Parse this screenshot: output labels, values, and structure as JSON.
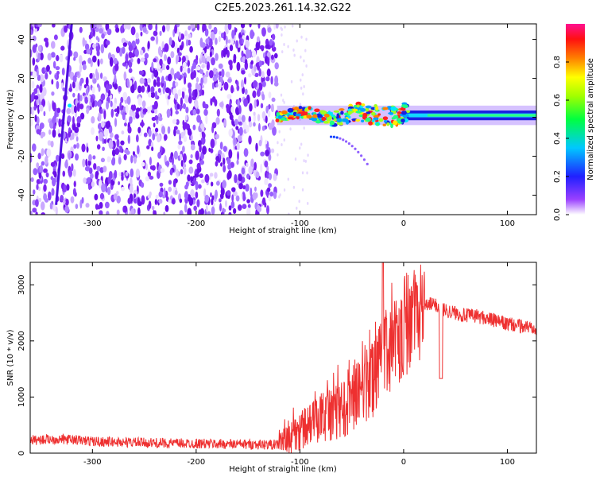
{
  "title": "C2E5.2023.261.14.32.G22",
  "chart_data": [
    {
      "type": "heatmap",
      "xlabel": "Height of straight line (km)",
      "ylabel": "Frequency (Hz)",
      "xlim": [
        -360,
        128
      ],
      "ylim": [
        -50,
        48
      ],
      "x_ticks": [
        -300,
        -200,
        -100,
        0,
        100
      ],
      "y_ticks": [
        -40,
        -20,
        0,
        20,
        40
      ],
      "colorbar": {
        "label": "Normalized spectral amplitude",
        "range": [
          0,
          1
        ],
        "ticks": [
          0.0,
          0.2,
          0.4,
          0.6,
          0.8
        ],
        "colormap": [
          "#ffffff",
          "#8000ff",
          "#0000ff",
          "#00ffff",
          "#00ff00",
          "#ffff00",
          "#ff8000",
          "#ff0000",
          "#ff00a0"
        ]
      },
      "features": {
        "noise_region_x": [
          -360,
          -122
        ],
        "signal_region_x": [
          -122,
          128
        ],
        "signal_frequency_hz": 1,
        "artifact_line": {
          "x": [
            -320,
            -335
          ],
          "y": [
            48,
            -45
          ]
        },
        "secondary_arc": {
          "x": [
            -70,
            -35
          ],
          "y": [
            -10,
            -24
          ]
        }
      }
    },
    {
      "type": "line",
      "xlabel": "Height of straight line (km)",
      "ylabel": "SNR (10 * v/v)",
      "xlim": [
        -360,
        128
      ],
      "ylim": [
        0,
        3400
      ],
      "x_ticks": [
        -300,
        -200,
        -100,
        0,
        100
      ],
      "y_ticks": [
        0,
        1000,
        2000,
        3000
      ],
      "color": "#ee3030",
      "series": [
        {
          "x": [
            -360,
            -340,
            -320,
            -300,
            -280,
            -260,
            -240,
            -220,
            -200,
            -180,
            -160,
            -140,
            -120,
            -110,
            -100,
            -90,
            -80,
            -70,
            -60,
            -50,
            -40,
            -30,
            -25,
            -20,
            -15,
            -10,
            -5,
            0,
            5,
            10,
            15,
            20,
            25,
            30,
            35,
            40,
            50,
            60,
            70,
            80,
            90,
            100,
            110,
            120,
            128
          ],
          "values": [
            230,
            250,
            240,
            210,
            200,
            190,
            180,
            175,
            170,
            165,
            160,
            155,
            150,
            250,
            400,
            500,
            650,
            700,
            800,
            950,
            1100,
            1300,
            1500,
            1700,
            1800,
            1950,
            2050,
            2150,
            2250,
            2400,
            2500,
            2600,
            2650,
            2650,
            2600,
            2550,
            2500,
            2450,
            2450,
            2400,
            2350,
            2300,
            2270,
            2250,
            2250
          ]
        }
      ]
    }
  ]
}
